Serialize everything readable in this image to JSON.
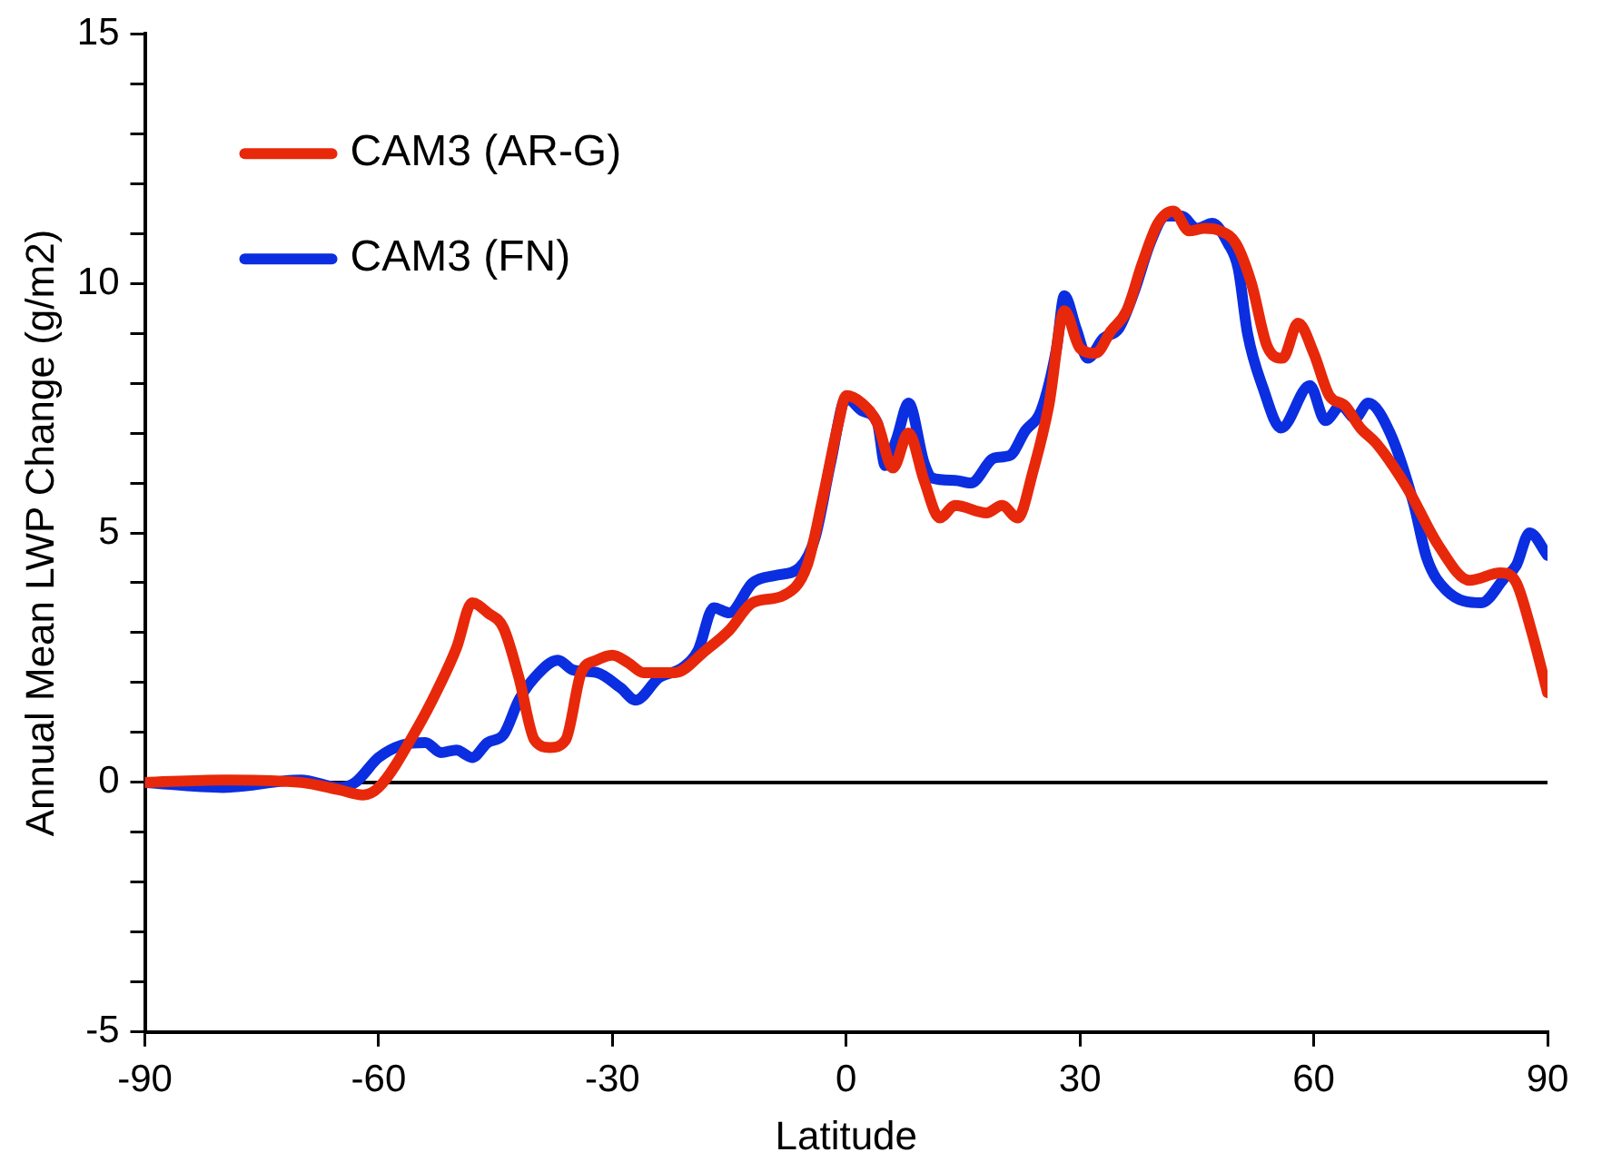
{
  "chart_data": {
    "type": "line",
    "xlabel": "Latitude",
    "ylabel": "Annual Mean LWP Change (g/m2)",
    "xlim": [
      -90,
      90
    ],
    "xticks": [
      -90,
      -60,
      -30,
      0,
      30,
      60,
      90
    ],
    "ylim": [
      -5,
      15
    ],
    "yticks": [
      -5,
      {
        "value": -4,
        "label": null
      },
      {
        "value": -3,
        "label": null
      },
      {
        "value": -2,
        "label": null
      },
      {
        "value": -1,
        "label": null
      },
      0,
      {
        "value": 1,
        "label": null
      },
      {
        "value": 2,
        "label": null
      },
      {
        "value": 3,
        "label": null
      },
      {
        "value": 4,
        "label": null
      },
      5,
      {
        "value": 6,
        "label": null
      },
      {
        "value": 7,
        "label": null
      },
      {
        "value": 8,
        "label": null
      },
      {
        "value": 9,
        "label": null
      },
      10,
      {
        "value": 11,
        "label": null
      },
      {
        "value": 12,
        "label": null
      },
      {
        "value": 13,
        "label": null
      },
      {
        "value": 14,
        "label": null
      },
      15
    ],
    "grid": false,
    "legend": "top left",
    "marker": "none",
    "line_style": "solid",
    "ref_lines": [
      {
        "axis": "y",
        "value": 0,
        "color": "#000000"
      }
    ],
    "series": [
      {
        "name": "CAM3 (AR-G)",
        "color": "#e8280a",
        "x": [
          -90,
          -80,
          -70,
          -65,
          -62,
          -60,
          -55,
          -52,
          -50,
          -48,
          -46,
          -44,
          -42,
          -40,
          -38,
          -36,
          -34,
          -32,
          -30,
          -28,
          -26,
          -22,
          -18,
          -15,
          -12,
          -8,
          -5,
          -3,
          -1,
          0,
          2,
          4,
          6,
          8,
          10,
          12,
          14,
          18,
          20,
          22,
          24,
          26,
          28,
          30,
          32,
          34,
          36,
          38,
          40,
          42,
          44,
          46,
          48,
          50,
          52,
          54,
          56,
          58,
          60,
          62,
          64,
          66,
          68,
          72,
          76,
          80,
          84,
          86,
          88,
          90
        ],
        "values": [
          0,
          0.05,
          0,
          -0.15,
          -0.25,
          -0.1,
          1.1,
          2.0,
          2.7,
          3.6,
          3.4,
          3.1,
          2.1,
          0.85,
          0.7,
          0.85,
          2.2,
          2.45,
          2.55,
          2.4,
          2.2,
          2.2,
          2.65,
          3.05,
          3.6,
          3.75,
          4.35,
          5.7,
          7.2,
          7.75,
          7.6,
          7.2,
          6.3,
          7.0,
          6.05,
          5.3,
          5.55,
          5.4,
          5.55,
          5.3,
          6.25,
          7.55,
          9.45,
          8.7,
          8.6,
          9.05,
          9.45,
          10.4,
          11.2,
          11.45,
          11.05,
          11.1,
          11.05,
          10.8,
          10.0,
          8.75,
          8.5,
          9.2,
          8.6,
          7.75,
          7.55,
          7.1,
          6.8,
          5.9,
          4.75,
          4.05,
          4.2,
          4.0,
          3.0,
          1.8
        ]
      },
      {
        "name": "CAM3 (FN)",
        "color": "#0a2ee0",
        "x": [
          -90,
          -80,
          -70,
          -65,
          -63,
          -60,
          -57,
          -54,
          -52,
          -50,
          -48,
          -46,
          -44,
          -42,
          -40,
          -37,
          -35,
          -32,
          -29,
          -27,
          -24,
          -21,
          -19,
          -17,
          -15,
          -12,
          -9,
          -6,
          -4,
          -2,
          0,
          2,
          4,
          5,
          6.5,
          8,
          10,
          11,
          14,
          16,
          19,
          21,
          23,
          25,
          27,
          28,
          29.5,
          31,
          33,
          35,
          37,
          39,
          41,
          43,
          45,
          47,
          49,
          50.3,
          51.5,
          53.5,
          55.8,
          59.5,
          61.5,
          63.5,
          65.3,
          67,
          69.8,
          72.8,
          74.5,
          77,
          81.5,
          84.5,
          86,
          87.7,
          90
        ],
        "values": [
          0,
          -0.1,
          0.05,
          -0.1,
          0,
          0.5,
          0.75,
          0.8,
          0.6,
          0.65,
          0.5,
          0.8,
          0.95,
          1.65,
          2.1,
          2.45,
          2.25,
          2.2,
          1.9,
          1.65,
          2.1,
          2.3,
          2.65,
          3.5,
          3.4,
          4.0,
          4.15,
          4.3,
          4.9,
          6.4,
          7.7,
          7.45,
          7.2,
          6.35,
          6.9,
          7.6,
          6.4,
          6.1,
          6.05,
          6.0,
          6.5,
          6.55,
          7.05,
          7.45,
          8.7,
          9.75,
          9.1,
          8.5,
          8.9,
          9.1,
          9.85,
          10.8,
          11.35,
          11.35,
          11.1,
          11.2,
          10.8,
          10.3,
          9.0,
          7.9,
          7.1,
          7.95,
          7.25,
          7.55,
          7.3,
          7.6,
          7.0,
          5.6,
          4.5,
          3.85,
          3.6,
          4.1,
          4.35,
          5.0,
          4.55
        ]
      }
    ]
  }
}
